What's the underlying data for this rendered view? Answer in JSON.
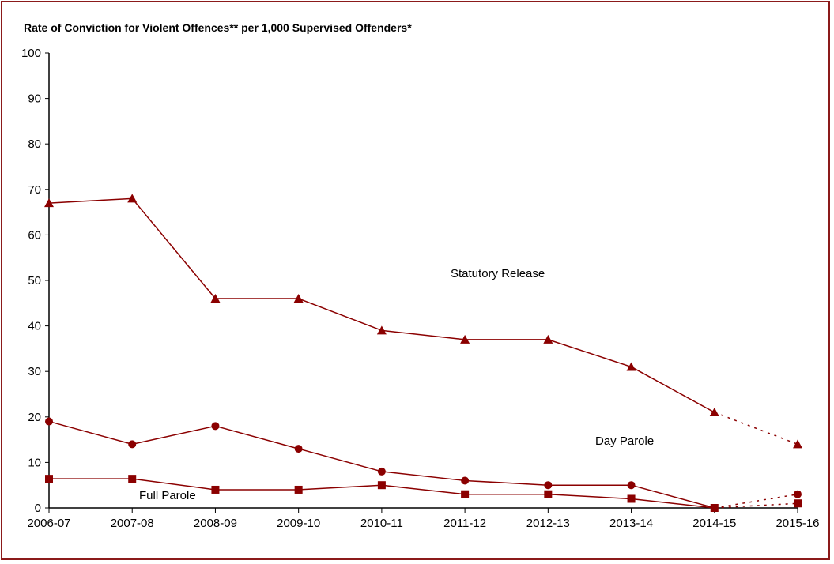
{
  "chart_data": {
    "type": "line",
    "title": "Rate of Conviction for Violent Offences** per 1,000 Supervised Offenders*",
    "xlabel": "",
    "ylabel": "",
    "ylim": [
      0,
      100
    ],
    "yticks": [
      "0",
      "10",
      "20",
      "30",
      "40",
      "50",
      "60",
      "70",
      "80",
      "90",
      "100"
    ],
    "categories": [
      "2006-07",
      "2007-08",
      "2008-09",
      "2009-10",
      "2010-11",
      "2011-12",
      "2012-13",
      "2013-14",
      "2014-15",
      "2015-16"
    ],
    "grid": false,
    "line_color": "#8b0000",
    "note": "",
    "dotted_last_segment": true,
    "series": [
      {
        "name": "Statutory Release",
        "marker": "triangle",
        "values": [
          67,
          68,
          46,
          46,
          39,
          37,
          37,
          31,
          21,
          14
        ]
      },
      {
        "name": "Day Parole",
        "marker": "circle",
        "values": [
          19,
          14,
          18,
          13,
          8,
          6,
          5,
          5,
          0,
          3
        ]
      },
      {
        "name": "Full Parole",
        "marker": "square",
        "values": [
          6.4,
          6.4,
          4,
          4,
          5,
          3,
          3,
          2,
          0,
          1
        ]
      }
    ]
  }
}
